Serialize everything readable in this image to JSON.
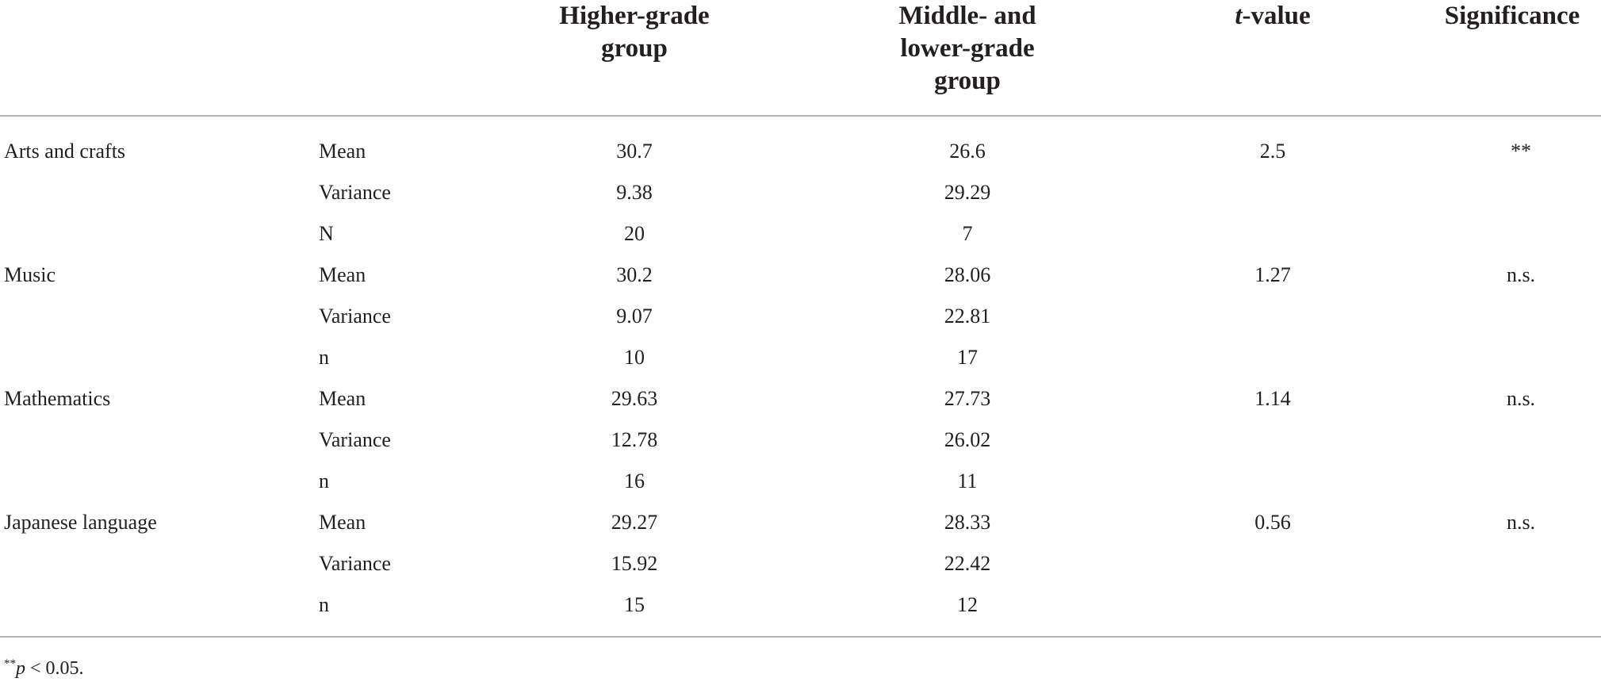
{
  "header": {
    "higher_line1": "Higher-grade",
    "higher_line2": "group",
    "middle_line1": "Middle- and",
    "middle_line2": "lower-grade",
    "middle_line3": "group",
    "tvalue_italic": "t",
    "tvalue_rest": "-value",
    "significance": "Significance"
  },
  "rows": [
    {
      "subject": "Arts and crafts",
      "stat": "Mean",
      "higher": "30.7",
      "middle": "26.6",
      "tvalue": "2.5",
      "sig": "**"
    },
    {
      "subject": "",
      "stat": "Variance",
      "higher": "9.38",
      "middle": "29.29",
      "tvalue": "",
      "sig": ""
    },
    {
      "subject": "",
      "stat": "N",
      "higher": "20",
      "middle": "7",
      "tvalue": "",
      "sig": ""
    },
    {
      "subject": "Music",
      "stat": "Mean",
      "higher": "30.2",
      "middle": "28.06",
      "tvalue": "1.27",
      "sig": "n.s."
    },
    {
      "subject": "",
      "stat": "Variance",
      "higher": "9.07",
      "middle": "22.81",
      "tvalue": "",
      "sig": ""
    },
    {
      "subject": "",
      "stat": "n",
      "higher": "10",
      "middle": "17",
      "tvalue": "",
      "sig": ""
    },
    {
      "subject": "Mathematics",
      "stat": "Mean",
      "higher": "29.63",
      "middle": "27.73",
      "tvalue": "1.14",
      "sig": "n.s."
    },
    {
      "subject": "",
      "stat": "Variance",
      "higher": "12.78",
      "middle": "26.02",
      "tvalue": "",
      "sig": ""
    },
    {
      "subject": "",
      "stat": "n",
      "higher": "16",
      "middle": "11",
      "tvalue": "",
      "sig": ""
    },
    {
      "subject": "Japanese language",
      "stat": "Mean",
      "higher": "29.27",
      "middle": "28.33",
      "tvalue": "0.56",
      "sig": "n.s."
    },
    {
      "subject": "",
      "stat": "Variance",
      "higher": "15.92",
      "middle": "22.42",
      "tvalue": "",
      "sig": ""
    },
    {
      "subject": "",
      "stat": "n",
      "higher": "15",
      "middle": "12",
      "tvalue": "",
      "sig": ""
    }
  ],
  "footnote": {
    "mark": "**",
    "p_italic": "p",
    "rest": " < 0.05."
  }
}
